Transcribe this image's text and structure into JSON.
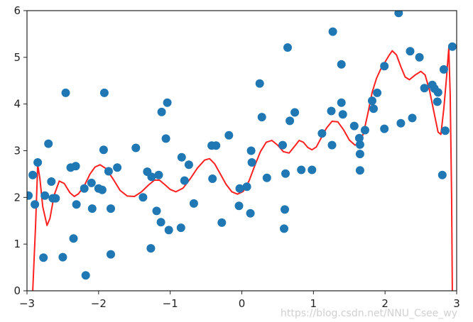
{
  "chart_data": {
    "type": "scatter",
    "title": "",
    "xlabel": "",
    "ylabel": "",
    "xlim": [
      -3,
      3
    ],
    "ylim": [
      0,
      6
    ],
    "grid": false,
    "legend": "none",
    "x_ticks": [
      "−3",
      "−2",
      "−1",
      "0",
      "1",
      "2",
      "3"
    ],
    "y_ticks": [
      "0",
      "1",
      "2",
      "3",
      "4",
      "5",
      "6"
    ],
    "points_color": "#1f77b4",
    "curve_color": "#ff2020",
    "series": [
      {
        "type": "scatter",
        "points": [
          [
            -2.98,
            2.04
          ],
          [
            -2.92,
            2.48
          ],
          [
            -2.89,
            1.85
          ],
          [
            -2.85,
            2.75
          ],
          [
            -2.77,
            0.71
          ],
          [
            -2.75,
            2.04
          ],
          [
            -2.7,
            3.15
          ],
          [
            -2.66,
            2.34
          ],
          [
            -2.64,
            1.98
          ],
          [
            -2.6,
            1.98
          ],
          [
            -2.5,
            0.72
          ],
          [
            -2.46,
            4.24
          ],
          [
            -2.39,
            2.64
          ],
          [
            -2.35,
            1.12
          ],
          [
            -2.32,
            2.67
          ],
          [
            -2.31,
            1.85
          ],
          [
            -2.2,
            2.19
          ],
          [
            -2.18,
            0.33
          ],
          [
            -2.1,
            2.31
          ],
          [
            -2.09,
            1.76
          ],
          [
            -2.0,
            2.19
          ],
          [
            -1.95,
            2.16
          ],
          [
            -1.93,
            3.02
          ],
          [
            -1.92,
            4.24
          ],
          [
            -1.86,
            2.56
          ],
          [
            -1.83,
            0.78
          ],
          [
            -1.83,
            1.76
          ],
          [
            -1.74,
            2.64
          ],
          [
            -1.48,
            3.06
          ],
          [
            -1.38,
            2.0
          ],
          [
            -1.32,
            2.55
          ],
          [
            -1.27,
            0.91
          ],
          [
            -1.26,
            2.44
          ],
          [
            -1.19,
            1.71
          ],
          [
            -1.16,
            2.48
          ],
          [
            -1.13,
            1.47
          ],
          [
            -1.12,
            3.83
          ],
          [
            -1.06,
            3.26
          ],
          [
            -1.04,
            4.03
          ],
          [
            -1.02,
            1.3
          ],
          [
            -0.85,
            1.35
          ],
          [
            -0.84,
            2.86
          ],
          [
            -0.8,
            2.36
          ],
          [
            -0.74,
            2.7
          ],
          [
            -0.67,
            1.87
          ],
          [
            -0.42,
            3.11
          ],
          [
            -0.41,
            2.4
          ],
          [
            -0.36,
            3.11
          ],
          [
            -0.28,
            1.46
          ],
          [
            -0.18,
            3.33
          ],
          [
            -0.04,
            1.82
          ],
          [
            -0.03,
            2.19
          ],
          [
            0.07,
            2.23
          ],
          [
            0.12,
            1.66
          ],
          [
            0.13,
            3.0
          ],
          [
            0.14,
            2.75
          ],
          [
            0.25,
            4.44
          ],
          [
            0.28,
            3.72
          ],
          [
            0.35,
            2.42
          ],
          [
            0.57,
            3.12
          ],
          [
            0.59,
            1.33
          ],
          [
            0.6,
            1.74
          ],
          [
            0.61,
            2.51
          ],
          [
            0.64,
            5.21
          ],
          [
            0.67,
            3.64
          ],
          [
            0.74,
            3.82
          ],
          [
            0.83,
            2.59
          ],
          [
            0.98,
            2.59
          ],
          [
            1.12,
            3.37
          ],
          [
            1.25,
            3.85
          ],
          [
            1.27,
            5.55
          ],
          [
            1.26,
            3.12
          ],
          [
            1.39,
            4.85
          ],
          [
            1.39,
            4.03
          ],
          [
            1.41,
            3.78
          ],
          [
            1.57,
            3.53
          ],
          [
            1.64,
            3.27
          ],
          [
            1.65,
            2.58
          ],
          [
            1.65,
            2.93
          ],
          [
            1.65,
            3.13
          ],
          [
            1.72,
            3.44
          ],
          [
            1.82,
            4.07
          ],
          [
            1.84,
            3.9
          ],
          [
            1.89,
            4.24
          ],
          [
            1.99,
            4.81
          ],
          [
            1.99,
            3.47
          ],
          [
            2.19,
            5.95
          ],
          [
            2.22,
            3.59
          ],
          [
            2.35,
            5.13
          ],
          [
            2.38,
            3.7
          ],
          [
            2.48,
            5.0
          ],
          [
            2.55,
            4.34
          ],
          [
            2.66,
            4.41
          ],
          [
            2.69,
            4.33
          ],
          [
            2.73,
            4.05
          ],
          [
            2.74,
            4.25
          ],
          [
            2.8,
            2.48
          ],
          [
            2.82,
            4.74
          ],
          [
            2.84,
            3.43
          ],
          [
            2.94,
            5.23
          ]
        ]
      },
      {
        "type": "line",
        "points": [
          [
            -2.92,
            0.0
          ],
          [
            -2.88,
            1.4
          ],
          [
            -2.85,
            2.7
          ],
          [
            -2.82,
            2.4
          ],
          [
            -2.78,
            1.8
          ],
          [
            -2.72,
            1.4
          ],
          [
            -2.68,
            1.55
          ],
          [
            -2.62,
            2.05
          ],
          [
            -2.55,
            2.35
          ],
          [
            -2.48,
            2.3
          ],
          [
            -2.4,
            2.1
          ],
          [
            -2.34,
            2.02
          ],
          [
            -2.28,
            2.08
          ],
          [
            -2.2,
            2.25
          ],
          [
            -2.12,
            2.5
          ],
          [
            -2.05,
            2.65
          ],
          [
            -1.98,
            2.7
          ],
          [
            -1.9,
            2.62
          ],
          [
            -1.8,
            2.4
          ],
          [
            -1.7,
            2.15
          ],
          [
            -1.6,
            2.03
          ],
          [
            -1.5,
            2.02
          ],
          [
            -1.4,
            2.12
          ],
          [
            -1.3,
            2.27
          ],
          [
            -1.22,
            2.37
          ],
          [
            -1.15,
            2.37
          ],
          [
            -1.08,
            2.28
          ],
          [
            -1.0,
            2.17
          ],
          [
            -0.92,
            2.12
          ],
          [
            -0.82,
            2.2
          ],
          [
            -0.72,
            2.4
          ],
          [
            -0.62,
            2.63
          ],
          [
            -0.52,
            2.8
          ],
          [
            -0.45,
            2.83
          ],
          [
            -0.38,
            2.72
          ],
          [
            -0.3,
            2.5
          ],
          [
            -0.22,
            2.28
          ],
          [
            -0.14,
            2.12
          ],
          [
            -0.06,
            2.07
          ],
          [
            0.02,
            2.13
          ],
          [
            0.1,
            2.35
          ],
          [
            0.18,
            2.68
          ],
          [
            0.26,
            2.98
          ],
          [
            0.34,
            3.18
          ],
          [
            0.42,
            3.22
          ],
          [
            0.5,
            3.12
          ],
          [
            0.58,
            2.98
          ],
          [
            0.66,
            2.95
          ],
          [
            0.74,
            3.1
          ],
          [
            0.8,
            3.22
          ],
          [
            0.86,
            3.18
          ],
          [
            0.92,
            3.07
          ],
          [
            0.98,
            3.02
          ],
          [
            1.04,
            3.08
          ],
          [
            1.1,
            3.25
          ],
          [
            1.18,
            3.48
          ],
          [
            1.26,
            3.63
          ],
          [
            1.34,
            3.62
          ],
          [
            1.42,
            3.45
          ],
          [
            1.5,
            3.23
          ],
          [
            1.58,
            3.12
          ],
          [
            1.64,
            3.15
          ],
          [
            1.7,
            3.38
          ],
          [
            1.76,
            3.8
          ],
          [
            1.82,
            4.25
          ],
          [
            1.88,
            4.55
          ],
          [
            1.94,
            4.75
          ],
          [
            2.0,
            4.9
          ],
          [
            2.06,
            5.05
          ],
          [
            2.1,
            5.14
          ],
          [
            2.16,
            5.05
          ],
          [
            2.22,
            4.8
          ],
          [
            2.28,
            4.58
          ],
          [
            2.34,
            4.52
          ],
          [
            2.42,
            4.62
          ],
          [
            2.5,
            4.7
          ],
          [
            2.56,
            4.62
          ],
          [
            2.62,
            4.3
          ],
          [
            2.68,
            3.85
          ],
          [
            2.74,
            3.4
          ],
          [
            2.78,
            3.35
          ],
          [
            2.82,
            3.9
          ],
          [
            2.86,
            4.6
          ],
          [
            2.89,
            5.2
          ],
          [
            2.91,
            4.2
          ],
          [
            2.93,
            2.0
          ],
          [
            2.94,
            0.0
          ]
        ]
      }
    ]
  },
  "watermark": "https://blog.csdn.net/NNU_Csee_wy"
}
